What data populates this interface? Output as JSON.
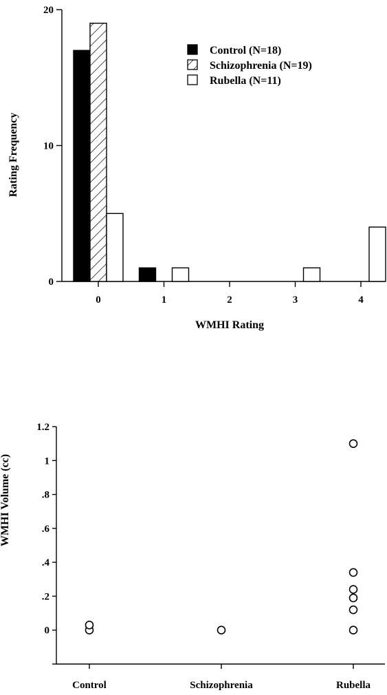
{
  "chart_data": [
    {
      "type": "bar",
      "xlabel": "WMHI Rating",
      "ylabel": "Rating Frequency",
      "categories": [
        "0",
        "1",
        "2",
        "3",
        "4"
      ],
      "y_ticks": [
        "0",
        "10",
        "20"
      ],
      "ylim": [
        0,
        20
      ],
      "series": [
        {
          "name": "Control (N=18)",
          "fill": "solid-black",
          "values": [
            17,
            1,
            0,
            0,
            0
          ]
        },
        {
          "name": "Schizophrenia (N=19)",
          "fill": "hatched",
          "values": [
            19,
            0,
            0,
            0,
            0
          ]
        },
        {
          "name": "Rubella (N=11)",
          "fill": "white",
          "values": [
            5,
            1,
            0,
            1,
            4
          ]
        }
      ],
      "legend_position": "top-right",
      "grid": false
    },
    {
      "type": "scatter",
      "ylabel": "WMHI Volume (cc)",
      "categories": [
        "Control",
        "Schizophrenia",
        "Rubella"
      ],
      "y_ticks": [
        "0",
        ".2",
        ".4",
        ".6",
        ".8",
        "1",
        "1.2"
      ],
      "ylim": [
        -0.2,
        1.2
      ],
      "marker": "open-circle",
      "points": [
        {
          "group": "Control",
          "values": [
            0.0,
            0.03
          ]
        },
        {
          "group": "Schizophrenia",
          "values": [
            0.0
          ]
        },
        {
          "group": "Rubella",
          "values": [
            0.0,
            0.12,
            0.19,
            0.24,
            0.34,
            1.1
          ]
        }
      ],
      "grid": false
    }
  ]
}
